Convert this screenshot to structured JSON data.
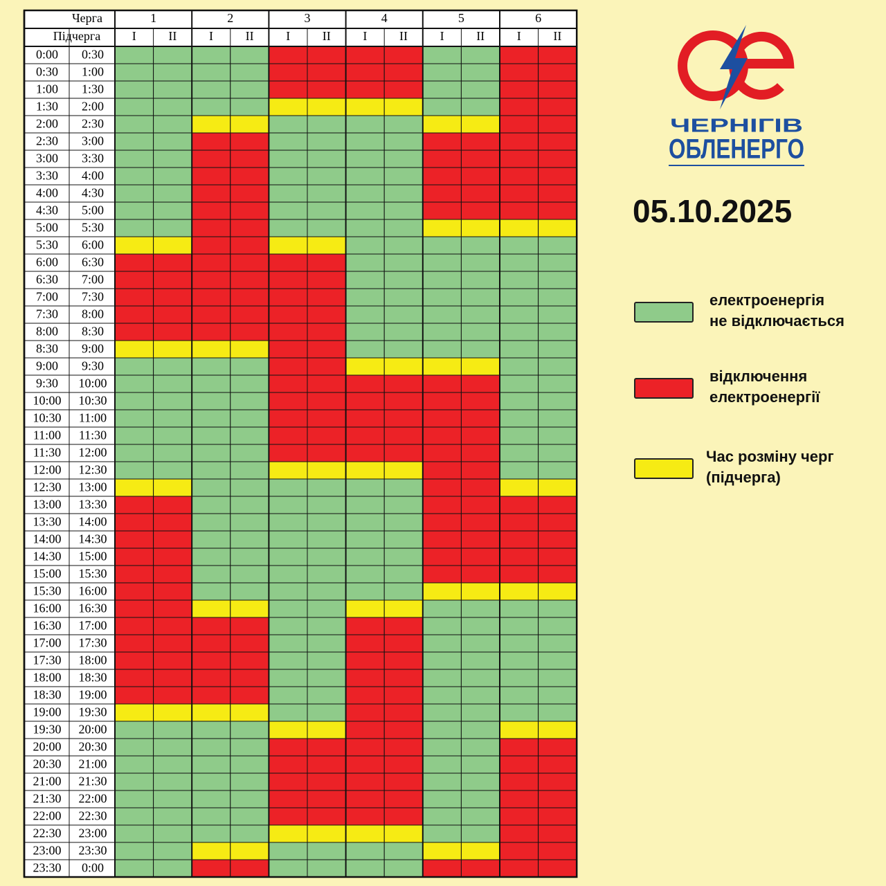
{
  "header": {
    "queue_label": "Черга",
    "subqueue_label": "Підчерга",
    "queues": [
      "1",
      "2",
      "3",
      "4",
      "5",
      "6"
    ],
    "subqueues": [
      "I",
      "II"
    ]
  },
  "colors": {
    "G": "#8fcb8a",
    "R": "#ec2227",
    "Y": "#f6eb14"
  },
  "rows": [
    {
      "from": "0:00",
      "to": "0:30",
      "cells": [
        "G",
        "G",
        "R",
        "R",
        "G",
        "R"
      ]
    },
    {
      "from": "0:30",
      "to": "1:00",
      "cells": [
        "G",
        "G",
        "R",
        "R",
        "G",
        "R"
      ]
    },
    {
      "from": "1:00",
      "to": "1:30",
      "cells": [
        "G",
        "G",
        "R",
        "R",
        "G",
        "R"
      ]
    },
    {
      "from": "1:30",
      "to": "2:00",
      "cells": [
        "G",
        "G",
        "Y",
        "Y",
        "G",
        "R"
      ]
    },
    {
      "from": "2:00",
      "to": "2:30",
      "cells": [
        "G",
        "Y",
        "G",
        "G",
        "Y",
        "R"
      ]
    },
    {
      "from": "2:30",
      "to": "3:00",
      "cells": [
        "G",
        "R",
        "G",
        "G",
        "R",
        "R"
      ]
    },
    {
      "from": "3:00",
      "to": "3:30",
      "cells": [
        "G",
        "R",
        "G",
        "G",
        "R",
        "R"
      ]
    },
    {
      "from": "3:30",
      "to": "4:00",
      "cells": [
        "G",
        "R",
        "G",
        "G",
        "R",
        "R"
      ]
    },
    {
      "from": "4:00",
      "to": "4:30",
      "cells": [
        "G",
        "R",
        "G",
        "G",
        "R",
        "R"
      ]
    },
    {
      "from": "4:30",
      "to": "5:00",
      "cells": [
        "G",
        "R",
        "G",
        "G",
        "R",
        "R"
      ]
    },
    {
      "from": "5:00",
      "to": "5:30",
      "cells": [
        "G",
        "R",
        "G",
        "G",
        "Y",
        "Y"
      ]
    },
    {
      "from": "5:30",
      "to": "6:00",
      "cells": [
        "Y",
        "R",
        "Y",
        "G",
        "G",
        "G"
      ]
    },
    {
      "from": "6:00",
      "to": "6:30",
      "cells": [
        "R",
        "R",
        "R",
        "G",
        "G",
        "G"
      ]
    },
    {
      "from": "6:30",
      "to": "7:00",
      "cells": [
        "R",
        "R",
        "R",
        "G",
        "G",
        "G"
      ]
    },
    {
      "from": "7:00",
      "to": "7:30",
      "cells": [
        "R",
        "R",
        "R",
        "G",
        "G",
        "G"
      ]
    },
    {
      "from": "7:30",
      "to": "8:00",
      "cells": [
        "R",
        "R",
        "R",
        "G",
        "G",
        "G"
      ]
    },
    {
      "from": "8:00",
      "to": "8:30",
      "cells": [
        "R",
        "R",
        "R",
        "G",
        "G",
        "G"
      ]
    },
    {
      "from": "8:30",
      "to": "9:00",
      "cells": [
        "Y",
        "Y",
        "R",
        "G",
        "G",
        "G"
      ]
    },
    {
      "from": "9:00",
      "to": "9:30",
      "cells": [
        "G",
        "G",
        "R",
        "Y",
        "Y",
        "G"
      ]
    },
    {
      "from": "9:30",
      "to": "10:00",
      "cells": [
        "G",
        "G",
        "R",
        "R",
        "R",
        "G"
      ]
    },
    {
      "from": "10:00",
      "to": "10:30",
      "cells": [
        "G",
        "G",
        "R",
        "R",
        "R",
        "G"
      ]
    },
    {
      "from": "10:30",
      "to": "11:00",
      "cells": [
        "G",
        "G",
        "R",
        "R",
        "R",
        "G"
      ]
    },
    {
      "from": "11:00",
      "to": "11:30",
      "cells": [
        "G",
        "G",
        "R",
        "R",
        "R",
        "G"
      ]
    },
    {
      "from": "11:30",
      "to": "12:00",
      "cells": [
        "G",
        "G",
        "R",
        "R",
        "R",
        "G"
      ]
    },
    {
      "from": "12:00",
      "to": "12:30",
      "cells": [
        "G",
        "G",
        "Y",
        "Y",
        "R",
        "G"
      ]
    },
    {
      "from": "12:30",
      "to": "13:00",
      "cells": [
        "Y",
        "G",
        "G",
        "G",
        "R",
        "Y"
      ]
    },
    {
      "from": "13:00",
      "to": "13:30",
      "cells": [
        "R",
        "G",
        "G",
        "G",
        "R",
        "R"
      ]
    },
    {
      "from": "13:30",
      "to": "14:00",
      "cells": [
        "R",
        "G",
        "G",
        "G",
        "R",
        "R"
      ]
    },
    {
      "from": "14:00",
      "to": "14:30",
      "cells": [
        "R",
        "G",
        "G",
        "G",
        "R",
        "R"
      ]
    },
    {
      "from": "14:30",
      "to": "15:00",
      "cells": [
        "R",
        "G",
        "G",
        "G",
        "R",
        "R"
      ]
    },
    {
      "from": "15:00",
      "to": "15:30",
      "cells": [
        "R",
        "G",
        "G",
        "G",
        "R",
        "R"
      ]
    },
    {
      "from": "15:30",
      "to": "16:00",
      "cells": [
        "R",
        "G",
        "G",
        "G",
        "Y",
        "Y"
      ]
    },
    {
      "from": "16:00",
      "to": "16:30",
      "cells": [
        "R",
        "Y",
        "G",
        "Y",
        "G",
        "G"
      ]
    },
    {
      "from": "16:30",
      "to": "17:00",
      "cells": [
        "R",
        "R",
        "G",
        "R",
        "G",
        "G"
      ]
    },
    {
      "from": "17:00",
      "to": "17:30",
      "cells": [
        "R",
        "R",
        "G",
        "R",
        "G",
        "G"
      ]
    },
    {
      "from": "17:30",
      "to": "18:00",
      "cells": [
        "R",
        "R",
        "G",
        "R",
        "G",
        "G"
      ]
    },
    {
      "from": "18:00",
      "to": "18:30",
      "cells": [
        "R",
        "R",
        "G",
        "R",
        "G",
        "G"
      ]
    },
    {
      "from": "18:30",
      "to": "19:00",
      "cells": [
        "R",
        "R",
        "G",
        "R",
        "G",
        "G"
      ]
    },
    {
      "from": "19:00",
      "to": "19:30",
      "cells": [
        "Y",
        "Y",
        "G",
        "R",
        "G",
        "G"
      ]
    },
    {
      "from": "19:30",
      "to": "20:00",
      "cells": [
        "G",
        "G",
        "Y",
        "R",
        "G",
        "Y"
      ]
    },
    {
      "from": "20:00",
      "to": "20:30",
      "cells": [
        "G",
        "G",
        "R",
        "R",
        "G",
        "R"
      ]
    },
    {
      "from": "20:30",
      "to": "21:00",
      "cells": [
        "G",
        "G",
        "R",
        "R",
        "G",
        "R"
      ]
    },
    {
      "from": "21:00",
      "to": "21:30",
      "cells": [
        "G",
        "G",
        "R",
        "R",
        "G",
        "R"
      ]
    },
    {
      "from": "21:30",
      "to": "22:00",
      "cells": [
        "G",
        "G",
        "R",
        "R",
        "G",
        "R"
      ]
    },
    {
      "from": "22:00",
      "to": "22:30",
      "cells": [
        "G",
        "G",
        "R",
        "R",
        "G",
        "R"
      ]
    },
    {
      "from": "22:30",
      "to": "23:00",
      "cells": [
        "G",
        "G",
        "Y",
        "Y",
        "G",
        "R"
      ]
    },
    {
      "from": "23:00",
      "to": "23:30",
      "cells": [
        "G",
        "Y",
        "G",
        "G",
        "Y",
        "R"
      ]
    },
    {
      "from": "23:30",
      "to": "0:00",
      "cells": [
        "G",
        "R",
        "G",
        "G",
        "R",
        "R"
      ]
    }
  ],
  "logo": {
    "line1": "ЧЕРНІГІВ",
    "line2": "ОБЛЕНЕРГО"
  },
  "date": "05.10.2025",
  "legend": [
    {
      "key": "G",
      "lines": [
        "електроенергія",
        "не відключається"
      ]
    },
    {
      "key": "R",
      "lines": [
        "відключення",
        "електроенергії"
      ]
    },
    {
      "key": "Y",
      "lines": [
        "Час розміну черг",
        "(підчерга)"
      ]
    }
  ]
}
